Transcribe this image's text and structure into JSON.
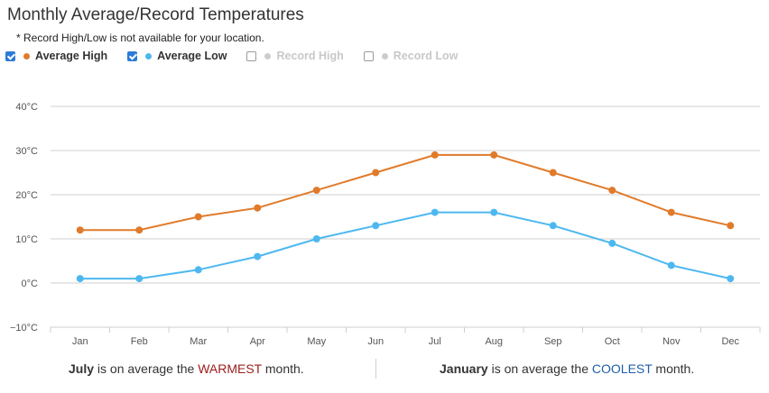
{
  "title": "Monthly Average/Record Temperatures",
  "note": "* Record High/Low is not available for your location.",
  "legend": [
    {
      "label": "Average High",
      "checked": true,
      "color": "#e07b2b",
      "enabled": true
    },
    {
      "label": "Average Low",
      "checked": true,
      "color": "#4db8f0",
      "enabled": true
    },
    {
      "label": "Record High",
      "checked": false,
      "color": "#cccccc",
      "enabled": false
    },
    {
      "label": "Record Low",
      "checked": false,
      "color": "#cccccc",
      "enabled": false
    }
  ],
  "chart_data": {
    "type": "line",
    "categories": [
      "Jan",
      "Feb",
      "Mar",
      "Apr",
      "May",
      "Jun",
      "Jul",
      "Aug",
      "Sep",
      "Oct",
      "Nov",
      "Dec"
    ],
    "series": [
      {
        "name": "Average High",
        "color": "#e07b2b",
        "values": [
          12,
          12,
          15,
          17,
          21,
          25,
          29,
          29,
          25,
          21,
          16,
          13
        ]
      },
      {
        "name": "Average Low",
        "color": "#4db8f0",
        "values": [
          1,
          1,
          3,
          6,
          10,
          13,
          16,
          16,
          13,
          9,
          4,
          1
        ]
      }
    ],
    "yticks": [
      "40°C",
      "30°C",
      "20°C",
      "10°C",
      "0°C",
      "−10°C"
    ],
    "ylim": [
      -10,
      40
    ],
    "grid": true
  },
  "footer": {
    "left": {
      "month": "July",
      "pre": " is on average the ",
      "word": "WARMEST",
      "post": " month."
    },
    "right": {
      "month": "January",
      "pre": " is on average the ",
      "word": "COOLEST",
      "post": " month."
    }
  }
}
